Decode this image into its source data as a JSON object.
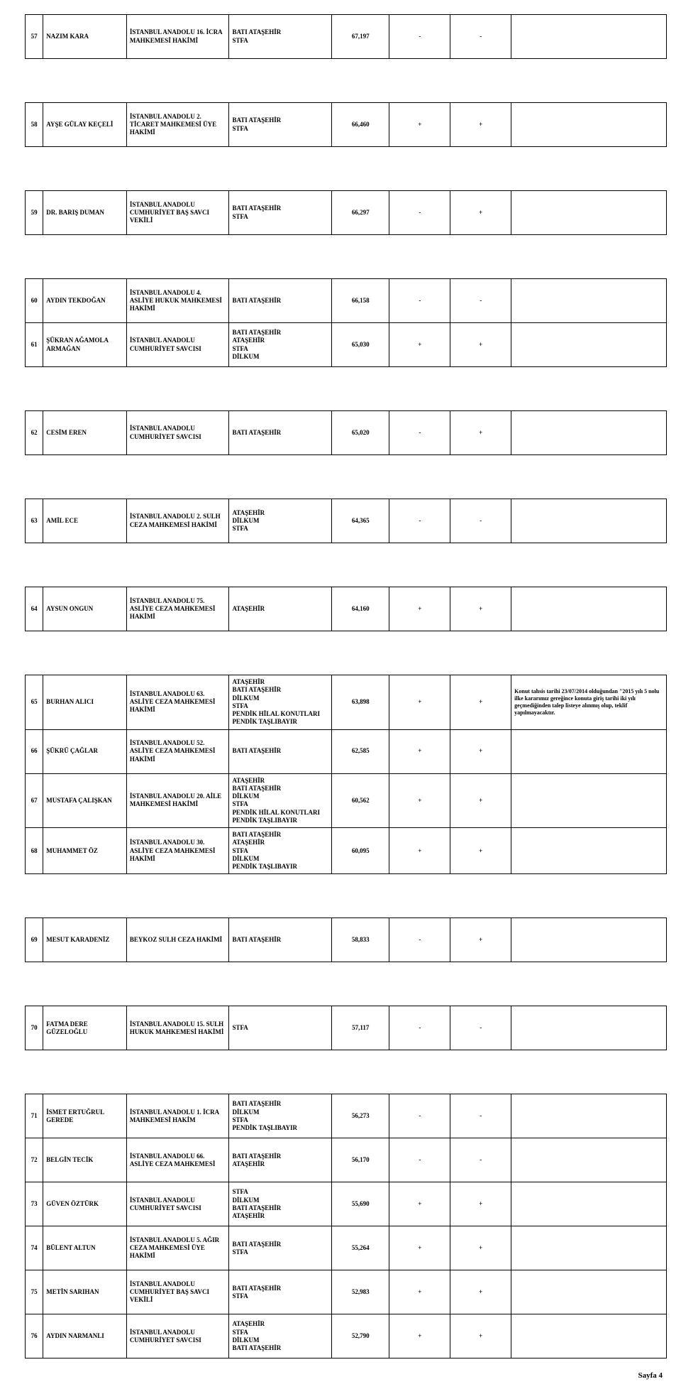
{
  "page_label": "Sayfa 4",
  "colors": {
    "text": "#000000",
    "background": "#ffffff",
    "border": "#000000"
  },
  "rows": [
    {
      "num": "57",
      "name": "NAZIM KARA",
      "position": "İSTANBUL ANADOLU 16. İCRA MAHKEMESİ HAKİMİ",
      "locations": [
        "BATI ATAŞEHİR",
        "STFA"
      ],
      "score": "67,197",
      "f1": "-",
      "f2": "-",
      "note": ""
    },
    {
      "num": "58",
      "name": "AYŞE GÜLAY KEÇELİ",
      "position": "İSTANBUL ANADOLU 2. TİCARET MAHKEMESİ ÜYE HAKİMİ",
      "locations": [
        "BATI ATAŞEHİR",
        "STFA"
      ],
      "score": "66,460",
      "f1": "+",
      "f2": "+",
      "note": ""
    },
    {
      "num": "59",
      "name": "DR. BARIŞ DUMAN",
      "position": "İSTANBUL ANADOLU CUMHURİYET BAŞ SAVCI VEKİLİ",
      "locations": [
        "BATI ATAŞEHİR",
        "STFA"
      ],
      "score": "66,297",
      "f1": "-",
      "f2": "+",
      "note": ""
    },
    {
      "num": "60",
      "name": "AYDIN TEKDOĞAN",
      "position": "İSTANBUL ANADOLU 4. ASLİYE HUKUK MAHKEMESİ HAKİMİ",
      "locations": [
        "BATI ATAŞEHİR"
      ],
      "score": "66,158",
      "f1": "-",
      "f2": "-",
      "note": ""
    },
    {
      "num": "61",
      "name": "ŞÜKRAN AĞAMOLA ARMAĞAN",
      "position": "İSTANBUL ANADOLU CUMHURİYET SAVCISI",
      "locations": [
        "BATI ATAŞEHİR",
        "ATAŞEHİR",
        "STFA",
        "DİLKUM"
      ],
      "score": "65,030",
      "f1": "+",
      "f2": "+",
      "note": ""
    },
    {
      "num": "62",
      "name": "CESİM EREN",
      "position": "İSTANBUL ANADOLU CUMHURİYET SAVCISI",
      "locations": [
        "BATI ATAŞEHİR"
      ],
      "score": "65,020",
      "f1": "-",
      "f2": "+",
      "note": ""
    },
    {
      "num": "63",
      "name": "AMİL ECE",
      "position": "İSTANBUL ANADOLU 2. SULH CEZA MAHKEMESİ HAKİMİ",
      "locations": [
        "ATAŞEHİR",
        "DİLKUM",
        "STFA"
      ],
      "score": "64,365",
      "f1": "-",
      "f2": "-",
      "note": ""
    },
    {
      "num": "64",
      "name": "AYSUN ONGUN",
      "position": "İSTANBUL ANADOLU 75. ASLİYE CEZA MAHKEMESİ HAKİMİ",
      "locations": [
        "ATAŞEHİR"
      ],
      "score": "64,160",
      "f1": "+",
      "f2": "+",
      "note": ""
    },
    {
      "num": "65",
      "name": "BURHAN ALICI",
      "position": "İSTANBUL ANADOLU 63. ASLİYE CEZA MAHKEMESİ HAKİMİ",
      "locations": [
        "ATAŞEHİR",
        "BATI ATAŞEHİR",
        "DİLKUM",
        "STFA",
        "PENDİK HİLAL KONUTLARI",
        "PENDİK TAŞLIBAYIR"
      ],
      "score": "63,898",
      "f1": "+",
      "f2": "+",
      "note": "Konut tahsis tarihi 23/07/2014 olduğundan \"2015 yılı 5 nolu ilke kararımız gereğince konuta giriş tarihi iki yılı geçmediğinden talep listeye alınmış olup, teklif yapılmayacaktır."
    },
    {
      "num": "66",
      "name": "ŞÜKRÜ ÇAĞLAR",
      "position": "İSTANBUL ANADOLU 52. ASLİYE  CEZA MAHKEMESİ HAKİMİ",
      "locations": [
        "BATI ATAŞEHİR"
      ],
      "score": "62,585",
      "f1": "+",
      "f2": "+",
      "note": ""
    },
    {
      "num": "67",
      "name": "MUSTAFA ÇALIŞKAN",
      "position": "İSTANBUL ANADOLU 20. AİLE MAHKEMESİ HAKİMİ",
      "locations": [
        "ATAŞEHİR",
        "BATI ATAŞEHİR",
        "DİLKUM",
        "STFA",
        "PENDİK HİLAL KONUTLARI",
        "PENDİK TAŞLIBAYIR"
      ],
      "score": "60,562",
      "f1": "+",
      "f2": "+",
      "note": ""
    },
    {
      "num": "68",
      "name": "MUHAMMET ÖZ",
      "position": "İSTANBUL ANADOLU 30. ASLİYE CEZA MAHKEMESİ HAKİMİ",
      "locations": [
        "BATI ATAŞEHİR",
        "ATAŞEHİR",
        "STFA",
        "DİLKUM",
        "PENDİK TAŞLIBAYIR"
      ],
      "score": "60,095",
      "f1": "+",
      "f2": "+",
      "note": ""
    },
    {
      "num": "69",
      "name": "MESUT KARADENİZ",
      "position": "BEYKOZ SULH CEZA HAKİMİ",
      "locations": [
        "BATI ATAŞEHİR"
      ],
      "score": "58,833",
      "f1": "-",
      "f2": "+",
      "note": ""
    },
    {
      "num": "70",
      "name": "FATMA DERE GÜZELOĞLU",
      "position": "İSTANBUL ANADOLU 15. SULH HUKUK MAHKEMESİ HAKİMİ",
      "locations": [
        "STFA"
      ],
      "score": "57,117",
      "f1": "-",
      "f2": "-",
      "note": ""
    },
    {
      "num": "71",
      "name": "İSMET ERTUĞRUL GEREDE",
      "position": "İSTANBUL ANADOLU 1. İCRA MAHKEMESİ HAKİM",
      "locations": [
        "BATI ATAŞEHİR",
        "DİLKUM",
        "STFA",
        "PENDİK TAŞLIBAYIR"
      ],
      "score": "56,273",
      "f1": "-",
      "f2": "-",
      "note": ""
    },
    {
      "num": "72",
      "name": "BELGİN TECİK",
      "position": "İSTANBUL ANADOLU 66. ASLİYE CEZA MAHKEMESİ",
      "locations": [
        "BATI ATAŞEHİR",
        "ATAŞEHİR"
      ],
      "score": "56,170",
      "f1": "-",
      "f2": "-",
      "note": ""
    },
    {
      "num": "73",
      "name": "GÜVEN ÖZTÜRK",
      "position": "İSTANBUL ANADOLU CUMHURİYET SAVCISI",
      "locations": [
        "STFA",
        "DİLKUM",
        "BATI ATAŞEHİR",
        "ATAŞEHİR"
      ],
      "score": "55,690",
      "f1": "+",
      "f2": "+",
      "note": ""
    },
    {
      "num": "74",
      "name": "BÜLENT ALTUN",
      "position": "İSTANBUL ANADOLU 5. AĞIR CEZA MAHKEMESİ ÜYE HAKİMİ",
      "locations": [
        "BATI ATAŞEHİR",
        "STFA"
      ],
      "score": "55,264",
      "f1": "+",
      "f2": "+",
      "note": ""
    },
    {
      "num": "75",
      "name": "METİN SARIHAN",
      "position": "İSTANBUL ANADOLU CUMHURİYET BAŞ SAVCI VEKİLİ",
      "locations": [
        "BATI ATAŞEHİR",
        "STFA"
      ],
      "score": "52,983",
      "f1": "+",
      "f2": "+",
      "note": ""
    },
    {
      "num": "76",
      "name": "AYDIN NARMANLI",
      "position": "İSTANBUL ANADOLU CUMHURİYET SAVCISI",
      "locations": [
        "ATAŞEHİR",
        "STFA",
        "DİLKUM",
        "BATI ATAŞEHİR"
      ],
      "score": "52,790",
      "f1": "+",
      "f2": "+",
      "note": ""
    }
  ],
  "spacers_after": [
    "57",
    "58",
    "59",
    "61",
    "62",
    "63",
    "64",
    "68",
    "69",
    "70"
  ]
}
